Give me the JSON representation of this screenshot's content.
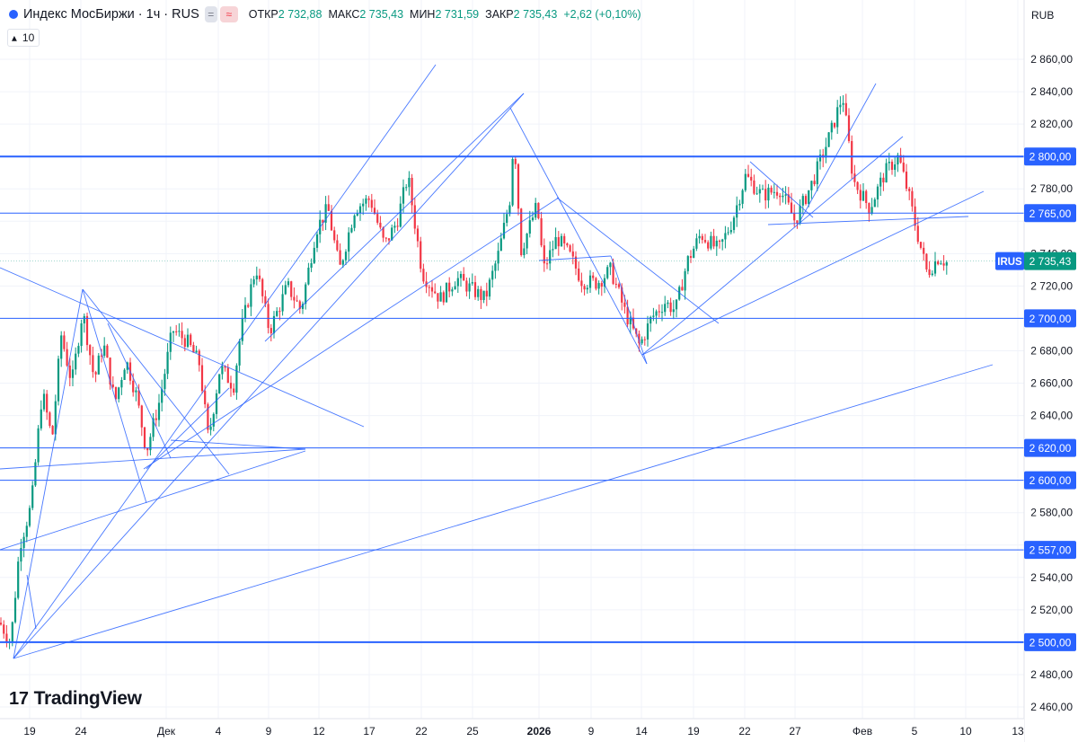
{
  "header": {
    "symbol": "Индекс МосБиржи · 1ч · RUS",
    "open_label": "ОТКР",
    "open": "2 732,88",
    "high_label": "МАКС",
    "high": "2 735,43",
    "low_label": "МИН",
    "low": "2 731,59",
    "close_label": "ЗАКР",
    "close": "2 735,43",
    "change": "+2,62 (+0,10%)",
    "badge_gray": "=",
    "badge_pink": "≈"
  },
  "indicator": {
    "label": "10"
  },
  "logo": {
    "mark": "17",
    "text": "TradingView"
  },
  "chart_data": {
    "type": "candlestick",
    "currency": "RUB",
    "ylim": [
      2455,
      2880
    ],
    "yticks": [
      2460,
      2480,
      2500,
      2520,
      2540,
      2560,
      2580,
      2600,
      2620,
      2640,
      2660,
      2680,
      2700,
      2720,
      2740,
      2760,
      2780,
      2800,
      2820,
      2840,
      2860
    ],
    "xticks": [
      "19",
      "24",
      "Дек",
      "4",
      "9",
      "12",
      "17",
      "22",
      "25",
      "2026",
      "9",
      "14",
      "19",
      "22",
      "27",
      "Фев",
      "5",
      "10",
      "13"
    ],
    "horizontal_levels": [
      {
        "value": 2800,
        "label": "2 800,00",
        "bold": true
      },
      {
        "value": 2765,
        "label": "2 765,00",
        "bold": false
      },
      {
        "value": 2700,
        "label": "2 700,00",
        "bold": false
      },
      {
        "value": 2620,
        "label": "2 620,00",
        "bold": false
      },
      {
        "value": 2600,
        "label": "2 600,00",
        "bold": false
      },
      {
        "value": 2557,
        "label": "2 557,00",
        "bold": false
      },
      {
        "value": 2500,
        "label": "2 500,00",
        "bold": true
      }
    ],
    "last_price": {
      "label": "IRUS",
      "value": 2735.43,
      "text": "2 735,43"
    },
    "colors": {
      "up": "#089981",
      "down": "#f23645",
      "line": "#2962ff",
      "grid": "#f0f3fa"
    },
    "price_path": [
      [
        0,
        2512
      ],
      [
        12,
        2500
      ],
      [
        22,
        2560
      ],
      [
        35,
        2585
      ],
      [
        47,
        2655
      ],
      [
        58,
        2625
      ],
      [
        68,
        2690
      ],
      [
        80,
        2660
      ],
      [
        92,
        2705
      ],
      [
        105,
        2662
      ],
      [
        115,
        2685
      ],
      [
        128,
        2648
      ],
      [
        140,
        2675
      ],
      [
        152,
        2652
      ],
      [
        163,
        2618
      ],
      [
        178,
        2650
      ],
      [
        192,
        2693
      ],
      [
        208,
        2686
      ],
      [
        222,
        2672
      ],
      [
        232,
        2625
      ],
      [
        245,
        2670
      ],
      [
        260,
        2658
      ],
      [
        268,
        2692
      ],
      [
        285,
        2732
      ],
      [
        300,
        2692
      ],
      [
        320,
        2720
      ],
      [
        335,
        2705
      ],
      [
        352,
        2755
      ],
      [
        365,
        2768
      ],
      [
        378,
        2730
      ],
      [
        395,
        2768
      ],
      [
        412,
        2774
      ],
      [
        428,
        2745
      ],
      [
        442,
        2760
      ],
      [
        454,
        2788
      ],
      [
        470,
        2728
      ],
      [
        490,
        2712
      ],
      [
        508,
        2725
      ],
      [
        525,
        2718
      ],
      [
        540,
        2712
      ],
      [
        555,
        2740
      ],
      [
        568,
        2775
      ],
      [
        572,
        2815
      ],
      [
        580,
        2742
      ],
      [
        598,
        2770
      ],
      [
        605,
        2730
      ],
      [
        620,
        2750
      ],
      [
        635,
        2738
      ],
      [
        648,
        2723
      ],
      [
        665,
        2722
      ],
      [
        680,
        2730
      ],
      [
        695,
        2705
      ],
      [
        712,
        2683
      ],
      [
        725,
        2700
      ],
      [
        740,
        2710
      ],
      [
        752,
        2705
      ],
      [
        765,
        2735
      ],
      [
        780,
        2752
      ],
      [
        800,
        2742
      ],
      [
        815,
        2760
      ],
      [
        830,
        2788
      ],
      [
        848,
        2776
      ],
      [
        868,
        2780
      ],
      [
        885,
        2760
      ],
      [
        905,
        2785
      ],
      [
        925,
        2815
      ],
      [
        938,
        2838
      ],
      [
        950,
        2785
      ],
      [
        968,
        2768
      ],
      [
        985,
        2790
      ],
      [
        1000,
        2800
      ],
      [
        1012,
        2775
      ],
      [
        1020,
        2755
      ],
      [
        1032,
        2728
      ],
      [
        1045,
        2738
      ],
      [
        1055,
        2734
      ]
    ]
  }
}
